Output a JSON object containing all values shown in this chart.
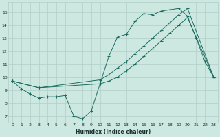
{
  "xlabel": "Humidex (Indice chaleur)",
  "bg_color": "#cce8e0",
  "grid_color": "#b0cfc8",
  "line_color": "#1a6b60",
  "xlim": [
    -0.5,
    23.5
  ],
  "ylim": [
    6.5,
    15.8
  ],
  "yticks": [
    7,
    8,
    9,
    10,
    11,
    12,
    13,
    14,
    15
  ],
  "xticks": [
    0,
    1,
    2,
    3,
    4,
    5,
    6,
    7,
    8,
    9,
    10,
    11,
    12,
    13,
    14,
    15,
    16,
    17,
    18,
    19,
    20,
    21,
    22,
    23
  ],
  "line1_x": [
    0,
    1,
    2,
    3,
    4,
    5,
    6,
    7,
    8,
    9,
    10,
    11,
    12,
    13,
    14,
    15,
    16,
    17,
    18,
    19,
    20,
    21,
    22,
    23
  ],
  "line1_y": [
    9.7,
    9.1,
    8.7,
    8.4,
    8.5,
    8.5,
    8.6,
    7.0,
    6.8,
    7.4,
    9.5,
    11.6,
    13.1,
    13.3,
    14.3,
    14.9,
    14.8,
    15.1,
    15.2,
    15.3,
    14.7,
    13.0,
    11.2,
    10.0
  ],
  "line2_x": [
    0,
    3,
    10,
    11,
    12,
    13,
    14,
    15,
    16,
    17,
    18,
    19,
    20,
    23
  ],
  "line2_y": [
    9.7,
    9.2,
    9.8,
    10.2,
    10.7,
    11.2,
    11.8,
    12.4,
    13.0,
    13.6,
    14.2,
    14.8,
    15.3,
    10.0
  ],
  "line3_x": [
    0,
    3,
    10,
    11,
    12,
    13,
    14,
    15,
    16,
    17,
    18,
    19,
    20,
    23
  ],
  "line3_y": [
    9.7,
    9.2,
    9.5,
    9.7,
    10.0,
    10.5,
    11.0,
    11.6,
    12.2,
    12.8,
    13.4,
    14.0,
    14.6,
    10.0
  ]
}
